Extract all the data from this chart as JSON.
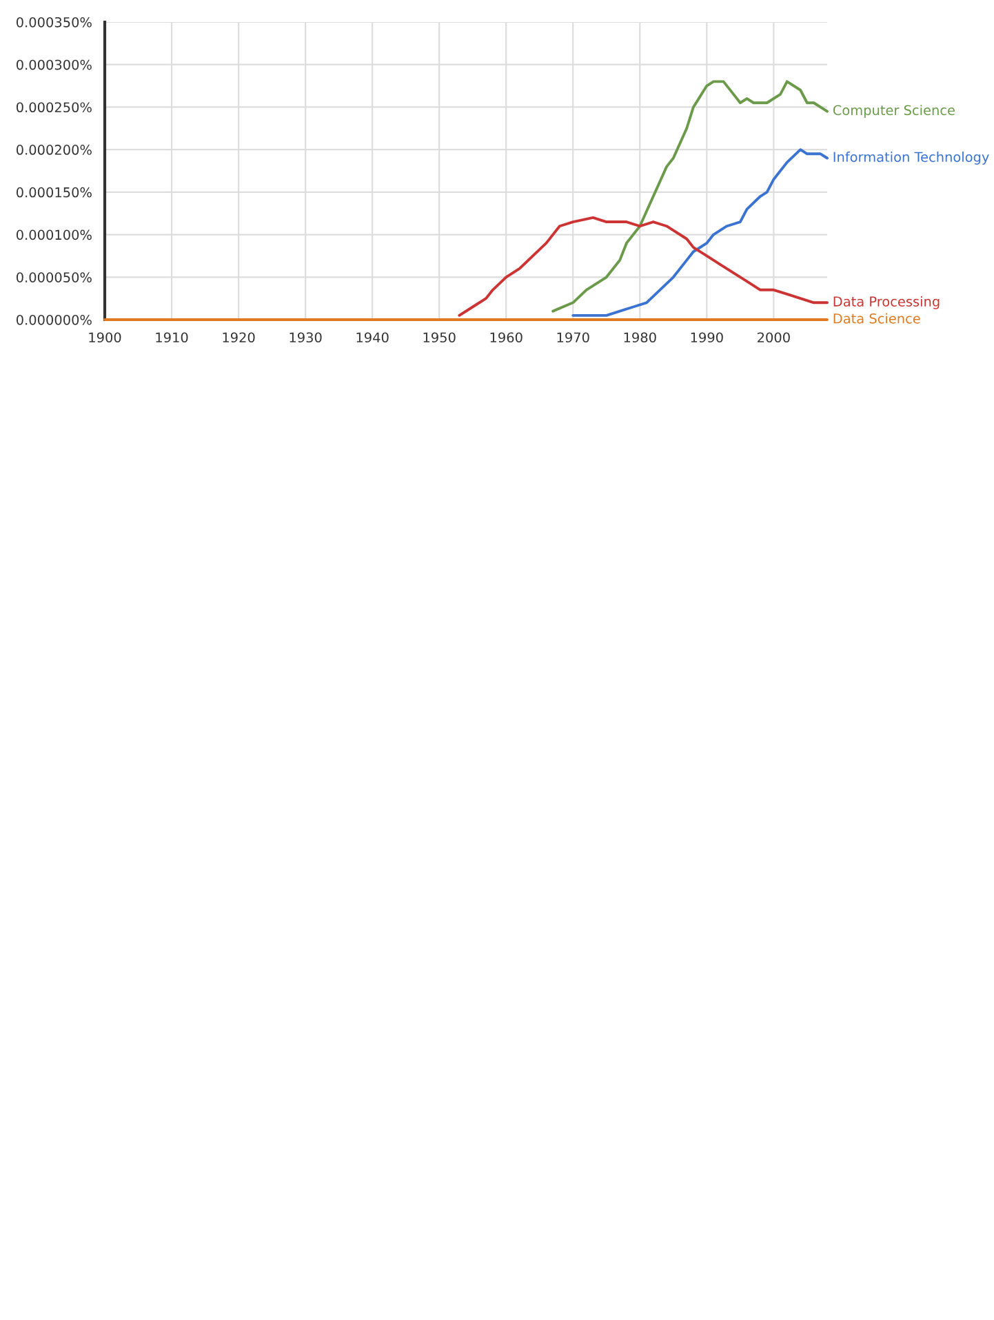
{
  "chart_data": {
    "type": "line",
    "grid": true,
    "legend": false,
    "marker": "none",
    "line_style": "solid",
    "xlim": [
      1900,
      2008
    ],
    "xticks": [
      1900,
      1910,
      1920,
      1930,
      1940,
      1950,
      1960,
      1970,
      1980,
      1990,
      2000
    ],
    "ylim": [
      0,
      0.00035
    ],
    "yticks": [
      {
        "value": 0,
        "label": "0.000000%"
      },
      {
        "value": 5e-05,
        "label": "0.000050%"
      },
      {
        "value": 0.0001,
        "label": "0.000100%"
      },
      {
        "value": 0.00015,
        "label": "0.000150%"
      },
      {
        "value": 0.0002,
        "label": "0.000200%"
      },
      {
        "value": 0.00025,
        "label": "0.000250%"
      },
      {
        "value": 0.0003,
        "label": "0.000300%"
      },
      {
        "value": 0.00035,
        "label": "0.000350%"
      }
    ],
    "series": [
      {
        "name": "Computer Science",
        "color": "#6a9a4a",
        "x": [
          1967,
          1970,
          1972,
          1975,
          1977,
          1978,
          1980,
          1982,
          1984,
          1985,
          1987,
          1988,
          1990,
          1991,
          1992.5,
          1994,
          1995,
          1996,
          1997,
          1999,
          2001,
          2002,
          2004,
          2005,
          2006,
          2008
        ],
        "values": [
          1e-05,
          2e-05,
          3.5e-05,
          5e-05,
          7e-05,
          9e-05,
          0.00011,
          0.000145,
          0.00018,
          0.00019,
          0.000225,
          0.00025,
          0.000275,
          0.00028,
          0.00028,
          0.000265,
          0.000255,
          0.00026,
          0.000255,
          0.000255,
          0.000265,
          0.00028,
          0.00027,
          0.000255,
          0.000255,
          0.000245
        ]
      },
      {
        "name": "Information Technology",
        "color": "#3b73d0",
        "x": [
          1970,
          1975,
          1977,
          1979,
          1981,
          1983,
          1985,
          1987,
          1988,
          1990,
          1991,
          1993,
          1995,
          1996,
          1998,
          1999,
          2000,
          2002,
          2004,
          2005,
          2007,
          2008
        ],
        "values": [
          5e-06,
          5e-06,
          1e-05,
          1.5e-05,
          2e-05,
          3.5e-05,
          5e-05,
          7e-05,
          8e-05,
          9e-05,
          0.0001,
          0.00011,
          0.000115,
          0.00013,
          0.000145,
          0.00015,
          0.000165,
          0.000185,
          0.0002,
          0.000195,
          0.000195,
          0.00019
        ]
      },
      {
        "name": "Data Processing",
        "color": "#cc3333",
        "x": [
          1953,
          1955,
          1957,
          1958,
          1960,
          1962,
          1964,
          1966,
          1968,
          1970,
          1973,
          1975,
          1977,
          1978,
          1980,
          1982,
          1984,
          1985,
          1987,
          1988,
          1990,
          1992,
          1994,
          1996,
          1998,
          2000,
          2002,
          2004,
          2006,
          2008
        ],
        "values": [
          5e-06,
          1.5e-05,
          2.5e-05,
          3.5e-05,
          5e-05,
          6e-05,
          7.5e-05,
          9e-05,
          0.00011,
          0.000115,
          0.00012,
          0.000115,
          0.000115,
          0.000115,
          0.00011,
          0.000115,
          0.00011,
          0.000105,
          9.5e-05,
          8.5e-05,
          7.5e-05,
          6.5e-05,
          5.5e-05,
          4.5e-05,
          3.5e-05,
          3.5e-05,
          3e-05,
          2.5e-05,
          2e-05,
          2e-05
        ]
      },
      {
        "name": "Data Science",
        "color": "#e07a20",
        "x": [
          1900,
          1910,
          1920,
          1930,
          1940,
          1950,
          1960,
          1970,
          1980,
          1990,
          2000,
          2008
        ],
        "values": [
          0,
          0,
          0,
          0,
          0,
          0,
          0,
          0,
          0,
          0,
          0,
          0
        ]
      }
    ]
  }
}
